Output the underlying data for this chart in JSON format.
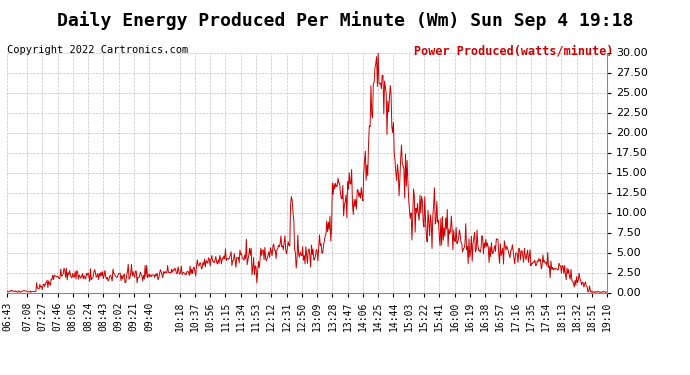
{
  "title": "Daily Energy Produced Per Minute (Wm) Sun Sep 4 19:18",
  "copyright": "Copyright 2022 Cartronics.com",
  "legend_label": "Power Produced(watts/minute)",
  "legend_color": "#cc0000",
  "ylim": [
    0.0,
    30.0
  ],
  "yticks": [
    0.0,
    2.5,
    5.0,
    7.5,
    10.0,
    12.5,
    15.0,
    17.5,
    20.0,
    22.5,
    25.0,
    27.5,
    30.0
  ],
  "line_color": "#cc0000",
  "background_color": "#ffffff",
  "grid_color": "#aaaaaa",
  "title_fontsize": 13,
  "copyright_fontsize": 7.5,
  "legend_fontsize": 8.5,
  "tick_fontsize": 7,
  "xtick_labels": [
    "06:43",
    "07:08",
    "07:27",
    "07:46",
    "08:05",
    "08:24",
    "08:43",
    "09:02",
    "09:21",
    "09:40",
    "10:18",
    "10:37",
    "10:56",
    "11:15",
    "11:34",
    "11:53",
    "12:12",
    "12:31",
    "12:50",
    "13:09",
    "13:28",
    "13:47",
    "14:06",
    "14:25",
    "14:44",
    "15:03",
    "15:22",
    "15:41",
    "16:00",
    "16:19",
    "16:38",
    "16:57",
    "17:16",
    "17:35",
    "17:54",
    "18:13",
    "18:32",
    "18:51",
    "19:10"
  ]
}
